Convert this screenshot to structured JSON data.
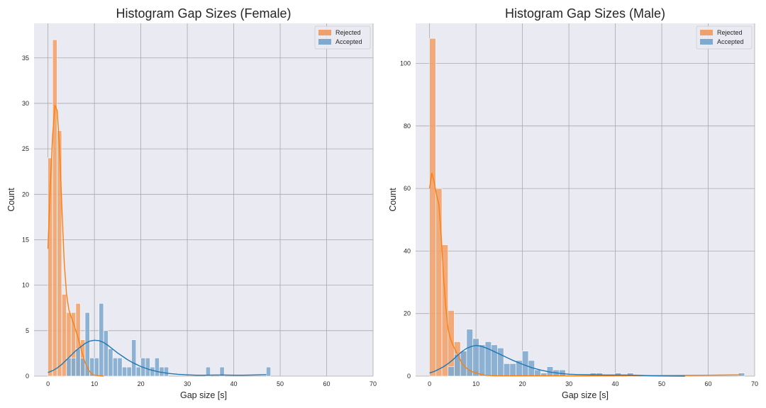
{
  "colors": {
    "rejected": "#f0a06a",
    "accepted": "#7fa9ce",
    "rejected_line": "#ff7f0e",
    "accepted_line": "#1f77b4",
    "plot_bg": "#eaeaf2",
    "grid": "#a9a9a9"
  },
  "chart_data": [
    {
      "type": "bar",
      "title": "Histogram Gap Sizes (Female)",
      "xlabel": "Gap size [s]",
      "ylabel": "Count",
      "xlim": [
        -3,
        70
      ],
      "ylim": [
        0,
        38.8
      ],
      "xticks": [
        0,
        10,
        20,
        30,
        40,
        50,
        60,
        70
      ],
      "yticks": [
        0,
        5,
        10,
        15,
        20,
        25,
        30,
        35
      ],
      "bin_width": 0.96,
      "legend": {
        "position": "top-right",
        "entries": [
          "Rejected",
          "Accepted"
        ]
      },
      "series": [
        {
          "name": "Rejected",
          "bins": [
            [
              0,
              24
            ],
            [
              1,
              37
            ],
            [
              2,
              27
            ],
            [
              3,
              9
            ],
            [
              4,
              7
            ],
            [
              5,
              7
            ],
            [
              6,
              8
            ],
            [
              7,
              4
            ],
            [
              8,
              1
            ],
            [
              9,
              0.3
            ]
          ]
        },
        {
          "name": "Accepted",
          "bins": [
            [
              4,
              2
            ],
            [
              5,
              2
            ],
            [
              6,
              3
            ],
            [
              7,
              2
            ],
            [
              8,
              7
            ],
            [
              9,
              2
            ],
            [
              10,
              2
            ],
            [
              11,
              8
            ],
            [
              12,
              5
            ],
            [
              13,
              3
            ],
            [
              14,
              2
            ],
            [
              15,
              2
            ],
            [
              16,
              1
            ],
            [
              17,
              1
            ],
            [
              18,
              4
            ],
            [
              19,
              1
            ],
            [
              20,
              2
            ],
            [
              21,
              2
            ],
            [
              22,
              1
            ],
            [
              23,
              2
            ],
            [
              24,
              1
            ],
            [
              25,
              1
            ],
            [
              34,
              1
            ],
            [
              37,
              1
            ],
            [
              47,
              1
            ]
          ]
        }
      ],
      "kde": [
        {
          "name": "Rejected",
          "points": [
            [
              0,
              14
            ],
            [
              0.5,
              21
            ],
            [
              1,
              26.5
            ],
            [
              1.5,
              29.8
            ],
            [
              2,
              29.2
            ],
            [
              2.5,
              25
            ],
            [
              3,
              18.5
            ],
            [
              3.5,
              12.5
            ],
            [
              4,
              9
            ],
            [
              4.5,
              7.3
            ],
            [
              5,
              6.5
            ],
            [
              5.5,
              5.8
            ],
            [
              6,
              5
            ],
            [
              6.5,
              4.2
            ],
            [
              7,
              3.2
            ],
            [
              7.5,
              2.3
            ],
            [
              8,
              1.5
            ],
            [
              8.5,
              0.9
            ],
            [
              9,
              0.5
            ],
            [
              9.5,
              0.25
            ],
            [
              10,
              0.1
            ],
            [
              11,
              0.04
            ],
            [
              12,
              0
            ]
          ]
        },
        {
          "name": "Accepted",
          "points": [
            [
              0,
              0.4
            ],
            [
              1,
              0.6
            ],
            [
              2,
              0.9
            ],
            [
              3,
              1.3
            ],
            [
              4,
              1.8
            ],
            [
              5,
              2.3
            ],
            [
              6,
              2.8
            ],
            [
              7,
              3.2
            ],
            [
              8,
              3.6
            ],
            [
              9,
              3.85
            ],
            [
              10,
              3.95
            ],
            [
              11,
              3.9
            ],
            [
              12,
              3.7
            ],
            [
              13,
              3.35
            ],
            [
              14,
              2.95
            ],
            [
              15,
              2.55
            ],
            [
              16,
              2.2
            ],
            [
              17,
              1.85
            ],
            [
              18,
              1.55
            ],
            [
              19,
              1.3
            ],
            [
              20,
              1.05
            ],
            [
              22,
              0.7
            ],
            [
              24,
              0.45
            ],
            [
              26,
              0.3
            ],
            [
              28,
              0.2
            ],
            [
              30,
              0.14
            ],
            [
              32,
              0.1
            ],
            [
              34,
              0.1
            ],
            [
              36,
              0.12
            ],
            [
              38,
              0.12
            ],
            [
              40,
              0.1
            ],
            [
              42,
              0.1
            ],
            [
              44,
              0.12
            ],
            [
              46,
              0.15
            ],
            [
              47,
              0.16
            ]
          ]
        }
      ]
    },
    {
      "type": "bar",
      "title": "Histogram Gap Sizes (Male)",
      "xlabel": "Gap size [s]",
      "ylabel": "Count",
      "xlim": [
        -3,
        70
      ],
      "ylim": [
        0,
        112.8
      ],
      "xticks": [
        0,
        10,
        20,
        30,
        40,
        50,
        60,
        70
      ],
      "yticks": [
        0,
        20,
        40,
        60,
        80,
        100
      ],
      "bin_width": 1.33,
      "legend": {
        "position": "top-right",
        "entries": [
          "Rejected",
          "Accepted"
        ]
      },
      "series": [
        {
          "name": "Rejected",
          "bins": [
            [
              0,
              108
            ],
            [
              1.33,
              60
            ],
            [
              2.66,
              42
            ],
            [
              3.99,
              21
            ],
            [
              5.32,
              11
            ],
            [
              6.65,
              8
            ],
            [
              7.98,
              2
            ],
            [
              9.31,
              2
            ],
            [
              10.64,
              1
            ]
          ]
        },
        {
          "name": "Accepted",
          "bins": [
            [
              3.99,
              3
            ],
            [
              5.32,
              7
            ],
            [
              6.65,
              8
            ],
            [
              7.98,
              15
            ],
            [
              9.31,
              12
            ],
            [
              10.64,
              10
            ],
            [
              11.97,
              11
            ],
            [
              13.3,
              10
            ],
            [
              14.63,
              9
            ],
            [
              15.96,
              4
            ],
            [
              17.29,
              4
            ],
            [
              18.62,
              5
            ],
            [
              19.95,
              8
            ],
            [
              21.28,
              5
            ],
            [
              22.61,
              2
            ],
            [
              23.94,
              1
            ],
            [
              25.27,
              3
            ],
            [
              26.6,
              2
            ],
            [
              27.93,
              2
            ],
            [
              34.58,
              1
            ],
            [
              35.91,
              1
            ],
            [
              39.9,
              1
            ],
            [
              42.56,
              1
            ],
            [
              66.5,
              1
            ]
          ]
        }
      ],
      "kde": [
        {
          "name": "Rejected",
          "points": [
            [
              0,
              60
            ],
            [
              0.5,
              65
            ],
            [
              1,
              62
            ],
            [
              1.5,
              58
            ],
            [
              2,
              55
            ],
            [
              2.5,
              45
            ],
            [
              3,
              32
            ],
            [
              3.5,
              22
            ],
            [
              4,
              15
            ],
            [
              4.5,
              12
            ],
            [
              5,
              10
            ],
            [
              5.5,
              8.5
            ],
            [
              6,
              7
            ],
            [
              6.5,
              5.5
            ],
            [
              7,
              4
            ],
            [
              8,
              2.5
            ],
            [
              9,
              1.5
            ],
            [
              10,
              1
            ],
            [
              11,
              0.6
            ],
            [
              12,
              0.3
            ],
            [
              14,
              0.1
            ],
            [
              20,
              0.1
            ],
            [
              30,
              0.1
            ],
            [
              40,
              0.1
            ],
            [
              50,
              0.2
            ],
            [
              60,
              0.3
            ],
            [
              67,
              0.4
            ]
          ]
        },
        {
          "name": "Accepted",
          "points": [
            [
              0,
              1
            ],
            [
              1,
              1.5
            ],
            [
              2,
              2.2
            ],
            [
              3,
              3
            ],
            [
              4,
              4
            ],
            [
              5,
              5.2
            ],
            [
              6,
              6.6
            ],
            [
              7,
              7.9
            ],
            [
              8,
              8.9
            ],
            [
              9,
              9.5
            ],
            [
              10,
              9.8
            ],
            [
              11,
              9.6
            ],
            [
              12,
              9.1
            ],
            [
              13,
              8.5
            ],
            [
              14,
              7.8
            ],
            [
              15,
              7.1
            ],
            [
              16,
              6.4
            ],
            [
              17,
              5.7
            ],
            [
              18,
              5
            ],
            [
              19,
              4.4
            ],
            [
              20,
              3.8
            ],
            [
              22,
              2.7
            ],
            [
              24,
              1.9
            ],
            [
              26,
              1.3
            ],
            [
              28,
              0.9
            ],
            [
              30,
              0.6
            ],
            [
              32,
              0.5
            ],
            [
              34,
              0.45
            ],
            [
              36,
              0.4
            ],
            [
              38,
              0.35
            ],
            [
              40,
              0.35
            ],
            [
              42,
              0.35
            ],
            [
              44,
              0.3
            ],
            [
              46,
              0.2
            ],
            [
              48,
              0.1
            ],
            [
              50,
              0.05
            ],
            [
              55,
              0
            ]
          ]
        }
      ]
    }
  ]
}
